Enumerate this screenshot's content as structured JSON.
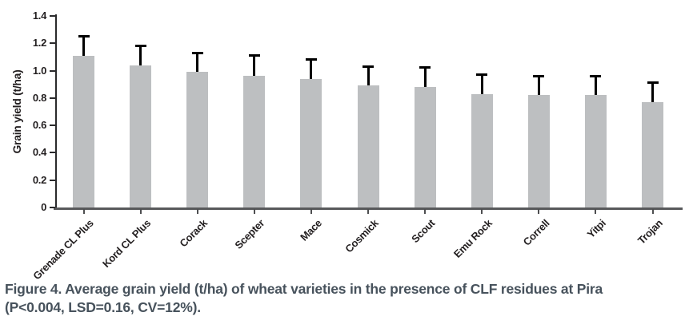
{
  "figure": {
    "caption_line1": "Figure 4. Average grain yield (t/ha) of wheat varieties in the presence of CLF residues at Pira",
    "caption_line2": "(P<0.004, LSD=0.16, CV=12%).",
    "caption_color": "#47525c"
  },
  "chart_data": {
    "type": "bar",
    "title": "",
    "xlabel": "",
    "ylabel": "Grain yield (t/ha)",
    "ylim": [
      0,
      1.4
    ],
    "ytick_step": 0.2,
    "ytick_labels": [
      "0",
      "0.2",
      "0.4",
      "0.6",
      "0.8",
      "1.0",
      "1.2",
      "1.4"
    ],
    "grid": false,
    "legend": "none",
    "categories": [
      "Grenade CL Plus",
      "Kord CL Plus",
      "Corack",
      "Scepter",
      "Mace",
      "Cosmick",
      "Scout",
      "Emu Rock",
      "Correll",
      "Yitpi",
      "Trojan"
    ],
    "values": [
      1.11,
      1.04,
      0.99,
      0.96,
      0.94,
      0.89,
      0.88,
      0.83,
      0.82,
      0.82,
      0.77
    ],
    "errors_upper": [
      0.15,
      0.15,
      0.15,
      0.16,
      0.15,
      0.15,
      0.15,
      0.15,
      0.15,
      0.15,
      0.15
    ],
    "bar_color": "#bdbfc1",
    "error_bar_color": "#000000",
    "axis_color": "#58595b",
    "tick_label_color": "#231f20"
  }
}
